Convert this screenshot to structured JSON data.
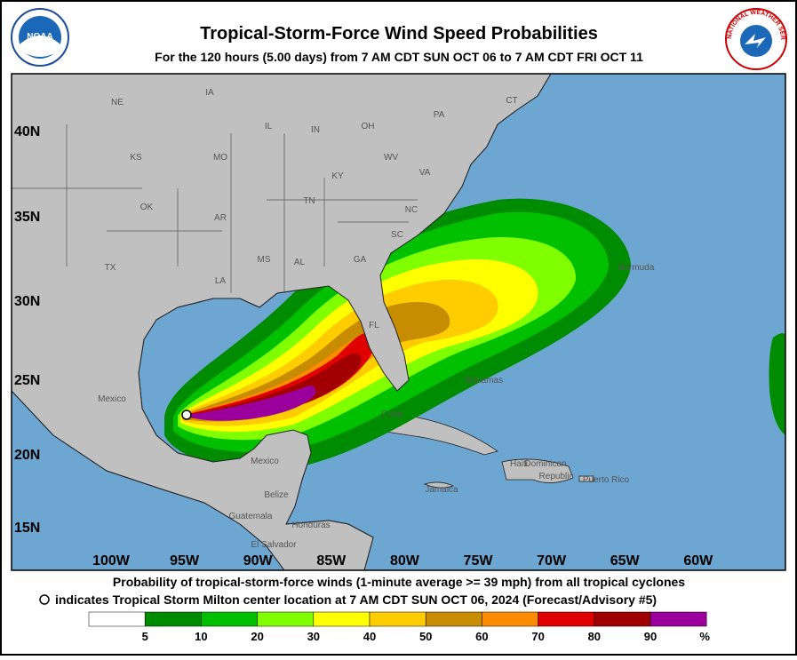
{
  "header": {
    "title": "Tropical-Storm-Force Wind Speed Probabilities",
    "subtitle": "For the 120 hours (5.00 days) from 7 AM CDT SUN OCT 06 to 7 AM CDT FRI OCT 11"
  },
  "logos": {
    "left": "NOAA",
    "right": "NATIONAL WEATHER SERVICE"
  },
  "map": {
    "lat_labels": [
      "40N",
      "35N",
      "30N",
      "25N",
      "20N",
      "15N"
    ],
    "lon_labels": [
      "100W",
      "95W",
      "90W",
      "85W",
      "80W",
      "75W",
      "70W",
      "65W",
      "60W"
    ],
    "places": [
      "NE",
      "IA",
      "KS",
      "MO",
      "IL",
      "IN",
      "OH",
      "PA",
      "OK",
      "AR",
      "TN",
      "KY",
      "WV",
      "VA",
      "NC",
      "SC",
      "GA",
      "AL",
      "MS",
      "LA",
      "TX",
      "FL",
      "CT",
      "Bermuda",
      "Bahamas",
      "Cuba",
      "Mexico",
      "Mexico",
      "Belize",
      "Guatemala",
      "Honduras",
      "El Salvador",
      "Haiti",
      "Dominican",
      "Republic",
      "Puerto Rico",
      "Jamaica"
    ]
  },
  "footer": {
    "line1": "Probability of tropical-storm-force winds (1-minute average >= 39 mph) from all tropical cyclones",
    "line2": "indicates Tropical Storm Milton center location at 7 AM CDT SUN OCT 06, 2024 (Forecast/Advisory #5)"
  },
  "legend": {
    "colors": [
      "#ffffff",
      "#008c00",
      "#00c000",
      "#80ff00",
      "#ffff00",
      "#ffcc00",
      "#c88c00",
      "#ff8c00",
      "#e00000",
      "#a00000",
      "#9c009c"
    ],
    "ticks": [
      5,
      10,
      20,
      30,
      40,
      50,
      60,
      70,
      80,
      90
    ],
    "unit": "%"
  }
}
